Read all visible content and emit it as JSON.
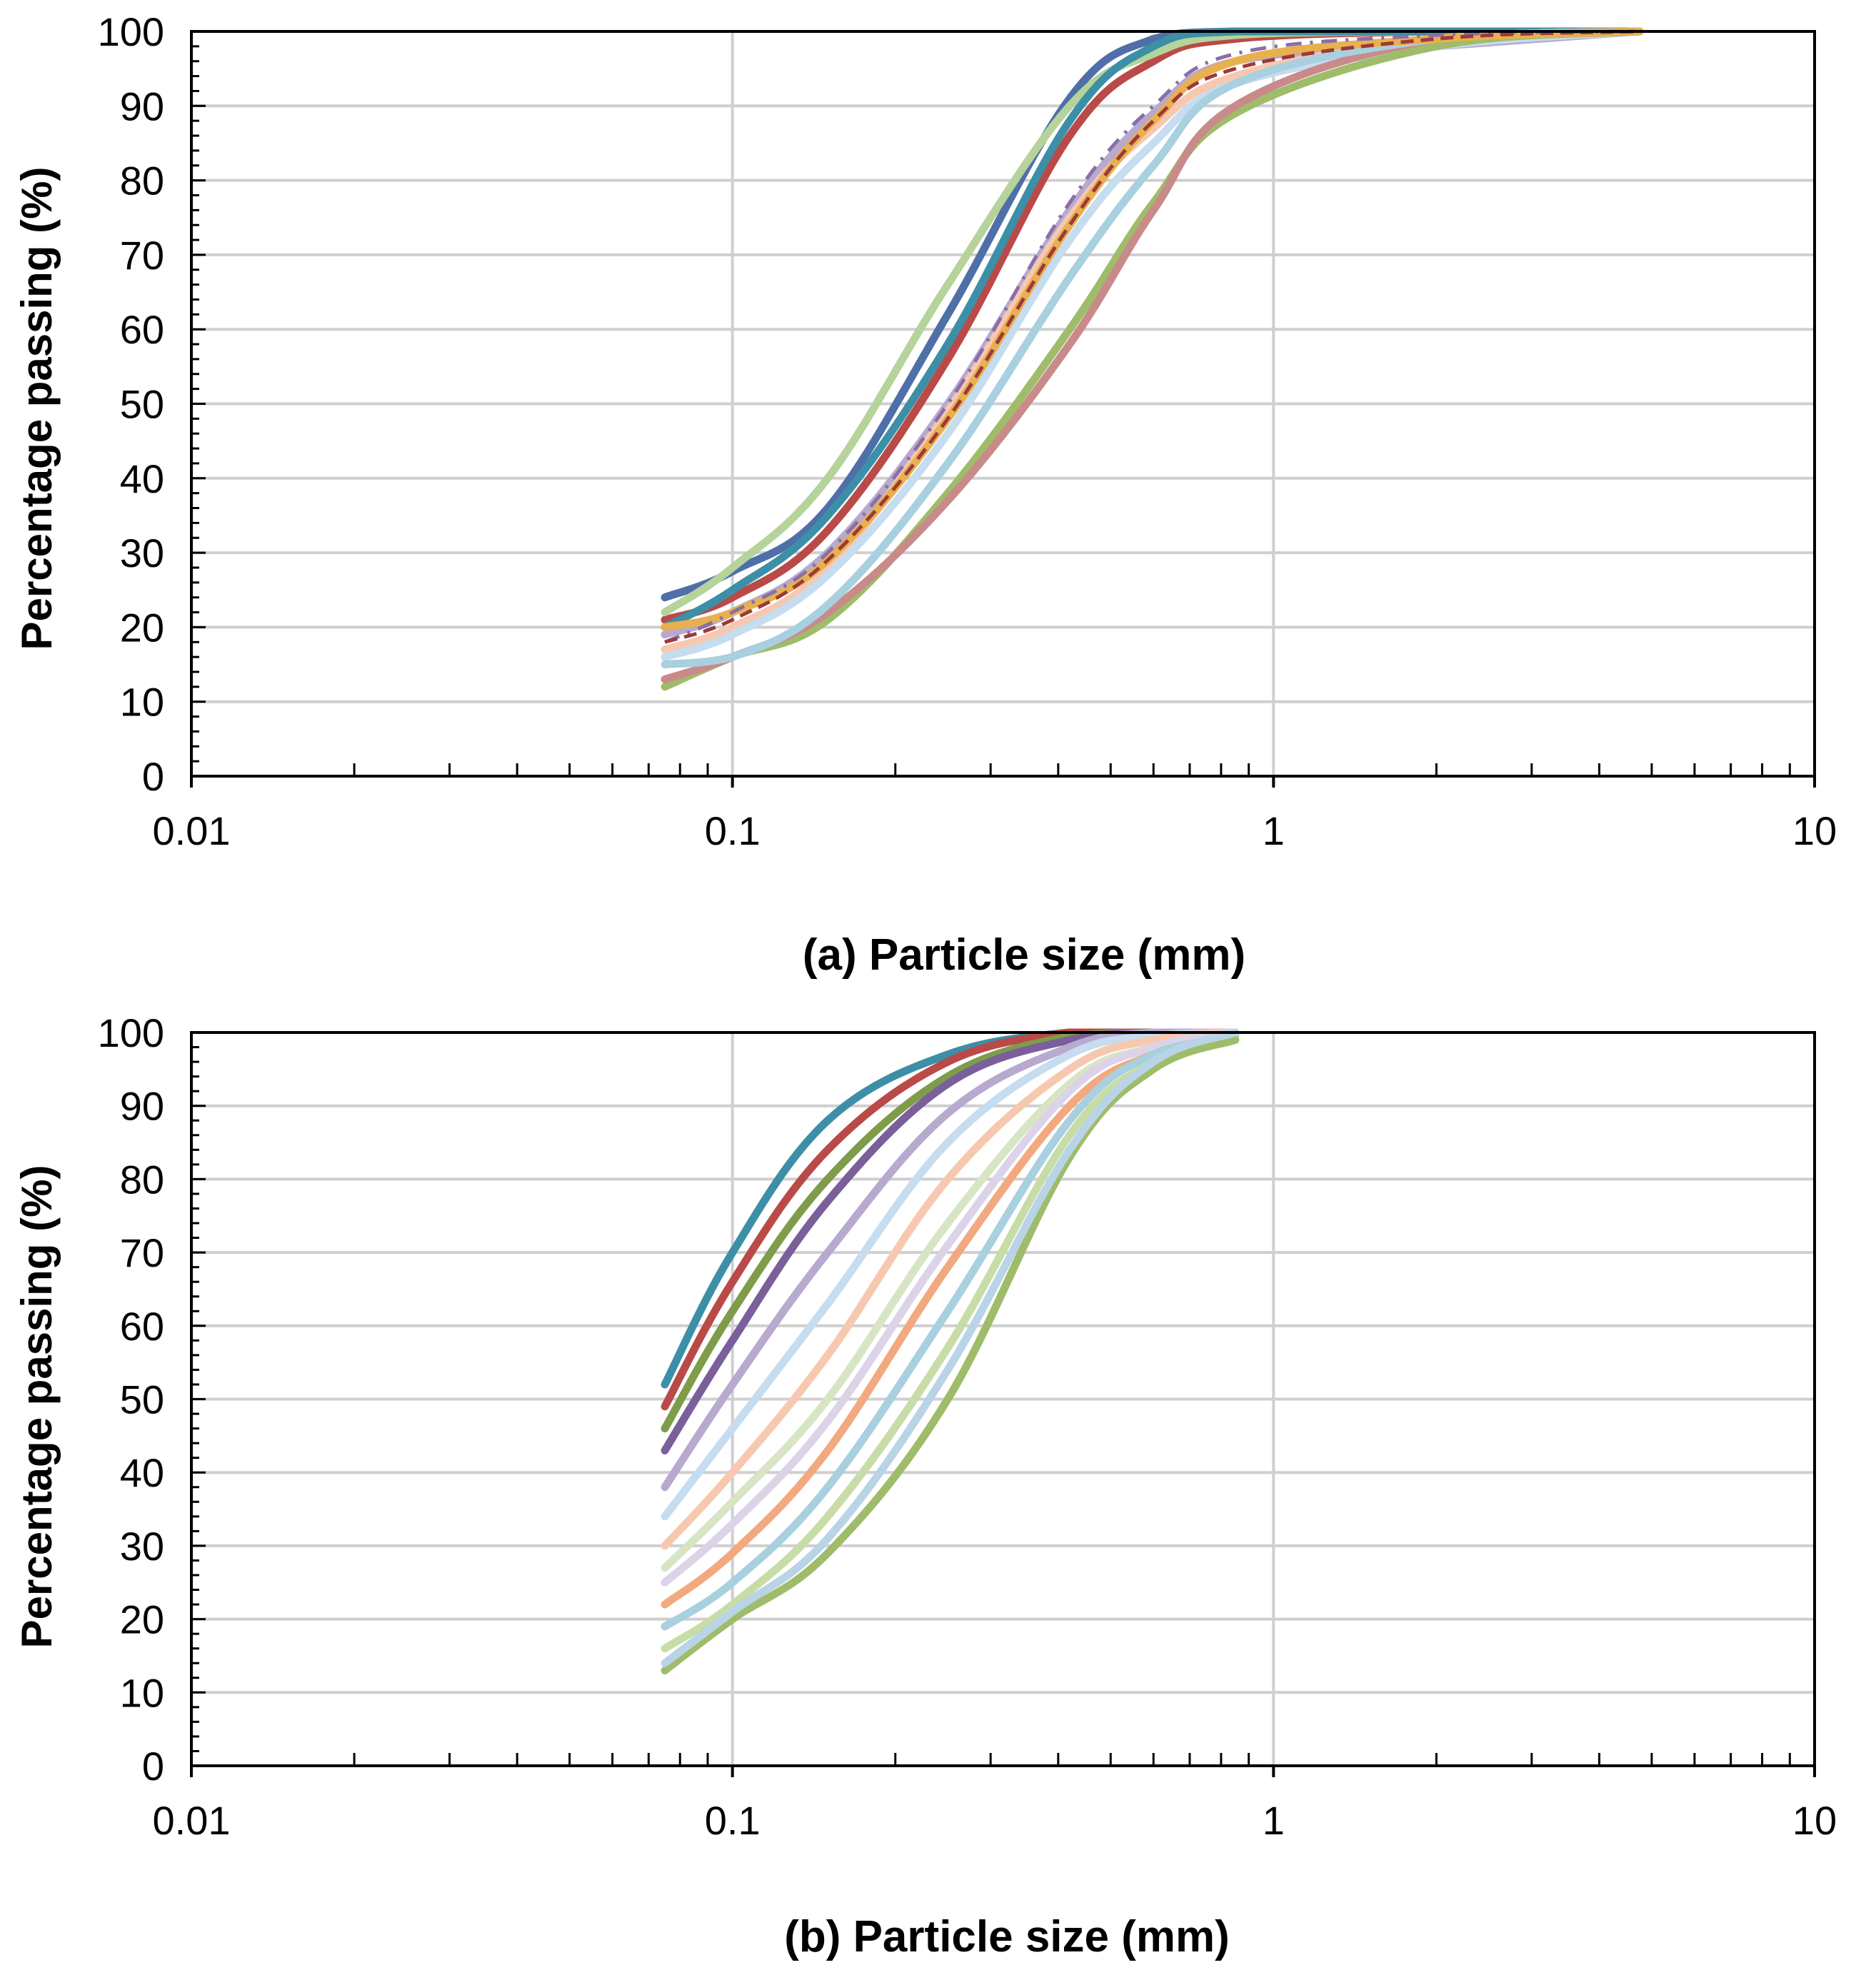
{
  "chart_data": [
    {
      "panel": "a",
      "type": "line",
      "x_scale": "log",
      "xlabel": "(a) Particle size (mm)",
      "ylabel": "Percentage passing (%)",
      "xlim": [
        0.01,
        10
      ],
      "ylim": [
        0,
        100
      ],
      "x_tick_labels": [
        "0.01",
        "0.1",
        "1",
        "10"
      ],
      "y_tick_labels": [
        "0",
        "10",
        "20",
        "30",
        "40",
        "50",
        "60",
        "70",
        "80",
        "90",
        "100"
      ],
      "grid": true,
      "legend": "none",
      "series": [
        {
          "name": "a1",
          "color": "#4f6fa8",
          "dash": "",
          "x": [
            0.075,
            0.1,
            0.15,
            0.25,
            0.42,
            0.6,
            0.85,
            2.0,
            4.75
          ],
          "y": [
            24,
            27.5,
            36,
            62,
            91,
            99,
            100,
            100,
            100
          ]
        },
        {
          "name": "a2",
          "color": "#b94a48",
          "dash": "",
          "x": [
            0.075,
            0.1,
            0.15,
            0.25,
            0.42,
            0.6,
            0.85,
            2.0,
            4.75
          ],
          "y": [
            21,
            24,
            33,
            56,
            86,
            96,
            99,
            100,
            100
          ]
        },
        {
          "name": "a3",
          "color": "#b5d39a",
          "dash": "",
          "x": [
            0.075,
            0.1,
            0.15,
            0.25,
            0.42,
            0.6,
            0.85,
            2.0,
            4.75
          ],
          "y": [
            22,
            28,
            40,
            66,
            90,
            97,
            99.5,
            100,
            100
          ]
        },
        {
          "name": "a4",
          "color": "#3c8fa6",
          "dash": "",
          "x": [
            0.075,
            0.1,
            0.15,
            0.25,
            0.42,
            0.6,
            0.85,
            2.0,
            4.75
          ],
          "y": [
            20,
            25,
            35,
            58,
            88,
            98,
            100,
            100,
            100
          ]
        },
        {
          "name": "a5",
          "color": "#b8a9cf",
          "dash": "",
          "x": [
            0.075,
            0.1,
            0.15,
            0.25,
            0.42,
            0.6,
            0.85,
            2.0,
            4.75
          ],
          "y": [
            19,
            22,
            30,
            50,
            76,
            89,
            96,
            98,
            100
          ]
        },
        {
          "name": "a6",
          "color": "#f7c8b0",
          "dash": "",
          "x": [
            0.075,
            0.1,
            0.15,
            0.25,
            0.42,
            0.6,
            0.85,
            2.0,
            4.75
          ],
          "y": [
            17,
            20,
            28,
            49,
            75,
            87,
            94,
            99,
            100
          ]
        },
        {
          "name": "a7",
          "color": "#c6dcef",
          "dash": "",
          "x": [
            0.075,
            0.1,
            0.15,
            0.25,
            0.42,
            0.6,
            0.85,
            2.0,
            4.75
          ],
          "y": [
            16,
            19,
            27,
            46,
            72,
            85,
            93,
            98,
            100
          ]
        },
        {
          "name": "a8",
          "color": "#9fbc6a",
          "dash": "",
          "x": [
            0.075,
            0.1,
            0.15,
            0.25,
            0.42,
            0.6,
            0.85,
            2.0,
            4.75
          ],
          "y": [
            12,
            16,
            21,
            38,
            60,
            77,
            89,
            98,
            100
          ]
        },
        {
          "name": "a9",
          "color": "#c98a8a",
          "dash": "",
          "x": [
            0.075,
            0.1,
            0.15,
            0.25,
            0.42,
            0.6,
            0.85,
            2.0,
            4.75
          ],
          "y": [
            13,
            16,
            22,
            37,
            58,
            76,
            90,
            99,
            100
          ]
        },
        {
          "name": "a10",
          "color": "#a8d0df",
          "dash": "",
          "x": [
            0.075,
            0.1,
            0.15,
            0.25,
            0.42,
            0.6,
            0.85,
            2.0,
            4.75
          ],
          "y": [
            15,
            16,
            23,
            42,
            67,
            82,
            93,
            99,
            100
          ]
        },
        {
          "name": "a11",
          "color": "#e8b04f",
          "dash": "",
          "x": [
            0.075,
            0.1,
            0.15,
            0.25,
            0.42,
            0.6,
            0.85,
            2.0,
            4.75
          ],
          "y": [
            20,
            22,
            29,
            48,
            74,
            88,
            96,
            99,
            100
          ]
        },
        {
          "name": "a12",
          "color": "#8a6fa6",
          "dash": "22,12,4,12",
          "x": [
            0.075,
            0.1,
            0.15,
            0.25,
            0.42,
            0.6,
            0.85,
            2.0,
            4.75
          ],
          "y": [
            18,
            22,
            30,
            50,
            77,
            90,
            97,
            99.5,
            100
          ]
        },
        {
          "name": "a13",
          "color": "#9b3a3a",
          "dash": "18,10",
          "x": [
            0.075,
            0.1,
            0.15,
            0.25,
            0.42,
            0.6,
            0.85,
            2.0,
            4.75
          ],
          "y": [
            18,
            21,
            29,
            48,
            74,
            88,
            95,
            99,
            100
          ]
        }
      ]
    },
    {
      "panel": "b",
      "type": "line",
      "x_scale": "log",
      "xlabel": "(b) Particle size (mm)",
      "ylabel": "Percentage passing (%)",
      "xlim": [
        0.01,
        10
      ],
      "ylim": [
        0,
        100
      ],
      "x_tick_labels": [
        "0.01",
        "0.1",
        "1",
        "10"
      ],
      "y_tick_labels": [
        "0",
        "10",
        "20",
        "30",
        "40",
        "50",
        "60",
        "70",
        "80",
        "90",
        "100"
      ],
      "grid": true,
      "legend": "none",
      "series": [
        {
          "name": "b1",
          "color": "#3c8fa6",
          "dash": "",
          "x": [
            0.075,
            0.1,
            0.15,
            0.25,
            0.42,
            0.6,
            0.85
          ],
          "y": [
            52,
            70,
            88,
            97,
            100,
            100,
            100
          ]
        },
        {
          "name": "b2",
          "color": "#b94a48",
          "dash": "",
          "x": [
            0.075,
            0.1,
            0.15,
            0.25,
            0.42,
            0.6,
            0.85
          ],
          "y": [
            49,
            66,
            84,
            96,
            100,
            100,
            100
          ]
        },
        {
          "name": "b3",
          "color": "#7e9c4a",
          "dash": "",
          "x": [
            0.075,
            0.1,
            0.15,
            0.25,
            0.42,
            0.6,
            0.85
          ],
          "y": [
            46,
            62,
            80,
            94,
            99.5,
            100,
            100
          ]
        },
        {
          "name": "b4",
          "color": "#7a5f9a",
          "dash": "",
          "x": [
            0.075,
            0.1,
            0.15,
            0.25,
            0.42,
            0.6,
            0.85
          ],
          "y": [
            43,
            58,
            77,
            93,
            99,
            100,
            100
          ]
        },
        {
          "name": "b5",
          "color": "#b8a9cf",
          "dash": "",
          "x": [
            0.075,
            0.1,
            0.15,
            0.25,
            0.42,
            0.6,
            0.85
          ],
          "y": [
            38,
            52,
            70,
            89,
            98,
            100,
            100
          ]
        },
        {
          "name": "b6",
          "color": "#c6dcef",
          "dash": "",
          "x": [
            0.075,
            0.1,
            0.15,
            0.25,
            0.42,
            0.6,
            0.85
          ],
          "y": [
            34,
            46,
            63,
            85,
            97,
            99.5,
            100
          ]
        },
        {
          "name": "b7",
          "color": "#f7c8b0",
          "dash": "",
          "x": [
            0.075,
            0.1,
            0.15,
            0.25,
            0.42,
            0.6,
            0.85
          ],
          "y": [
            30,
            40,
            56,
            80,
            95,
            99,
            100
          ]
        },
        {
          "name": "b8",
          "color": "#d7e5c4",
          "dash": "",
          "x": [
            0.075,
            0.1,
            0.15,
            0.25,
            0.42,
            0.6,
            0.85
          ],
          "y": [
            27,
            36,
            50,
            74,
            93,
            98,
            100
          ]
        },
        {
          "name": "b9",
          "color": "#dcd3e8",
          "dash": "",
          "x": [
            0.075,
            0.1,
            0.15,
            0.25,
            0.42,
            0.6,
            0.85
          ],
          "y": [
            25,
            33,
            47,
            71,
            92,
            98,
            100
          ]
        },
        {
          "name": "b10",
          "color": "#f2a97f",
          "dash": "",
          "x": [
            0.075,
            0.1,
            0.15,
            0.25,
            0.42,
            0.6,
            0.85
          ],
          "y": [
            22,
            29,
            43,
            68,
            90,
            97,
            99.5
          ]
        },
        {
          "name": "b11",
          "color": "#a8d0df",
          "dash": "",
          "x": [
            0.075,
            0.1,
            0.15,
            0.25,
            0.42,
            0.6,
            0.85
          ],
          "y": [
            19,
            25,
            38,
            62,
            88,
            97,
            99
          ]
        },
        {
          "name": "b12",
          "color": "#c7dca7",
          "dash": "",
          "x": [
            0.075,
            0.1,
            0.15,
            0.25,
            0.42,
            0.6,
            0.85
          ],
          "y": [
            16,
            22,
            34,
            57,
            86,
            96,
            99.5
          ]
        },
        {
          "name": "b13",
          "color": "#9fbc6a",
          "dash": "",
          "x": [
            0.075,
            0.1,
            0.15,
            0.25,
            0.42,
            0.6,
            0.85
          ],
          "y": [
            13,
            20,
            29,
            50,
            83,
            95,
            99
          ]
        },
        {
          "name": "b14",
          "color": "#b8d4e6",
          "dash": "",
          "x": [
            0.075,
            0.1,
            0.15,
            0.25,
            0.42,
            0.6,
            0.85
          ],
          "y": [
            14,
            21,
            31,
            54,
            84,
            96,
            100
          ]
        }
      ]
    }
  ]
}
